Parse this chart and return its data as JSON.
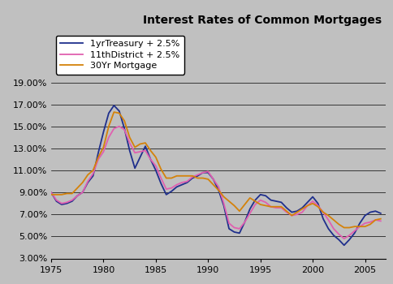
{
  "title": "Interest Rates of Common Mortgages",
  "background_color": "#c0c0c0",
  "plot_background": "#c0c0c0",
  "xlim": [
    1975,
    2007
  ],
  "ylim": [
    0.03,
    0.19
  ],
  "xticks": [
    1975,
    1980,
    1985,
    1990,
    1995,
    2000,
    2005
  ],
  "yticks": [
    0.03,
    0.05,
    0.07,
    0.09,
    0.11,
    0.13,
    0.15,
    0.17,
    0.19
  ],
  "series": [
    {
      "label": "1yrTreasury + 2.5%",
      "color": "#1f2f8c",
      "data_x": [
        1975.0,
        1975.5,
        1976.0,
        1976.5,
        1977.0,
        1977.5,
        1978.0,
        1978.5,
        1979.0,
        1979.5,
        1980.0,
        1980.5,
        1981.0,
        1981.5,
        1982.0,
        1982.5,
        1983.0,
        1983.5,
        1984.0,
        1984.5,
        1985.0,
        1985.5,
        1986.0,
        1986.5,
        1987.0,
        1987.5,
        1988.0,
        1988.5,
        1989.0,
        1989.5,
        1990.0,
        1990.5,
        1991.0,
        1991.5,
        1992.0,
        1992.5,
        1993.0,
        1993.5,
        1994.0,
        1994.5,
        1995.0,
        1995.5,
        1996.0,
        1996.5,
        1997.0,
        1997.5,
        1998.0,
        1998.5,
        1999.0,
        1999.5,
        2000.0,
        2000.5,
        2001.0,
        2001.5,
        2002.0,
        2002.5,
        2003.0,
        2003.5,
        2004.0,
        2004.5,
        2005.0,
        2005.5,
        2006.0,
        2006.5
      ],
      "data_y": [
        0.09,
        0.082,
        0.079,
        0.08,
        0.082,
        0.087,
        0.09,
        0.099,
        0.105,
        0.126,
        0.145,
        0.162,
        0.169,
        0.164,
        0.148,
        0.128,
        0.112,
        0.122,
        0.132,
        0.12,
        0.11,
        0.098,
        0.088,
        0.091,
        0.095,
        0.097,
        0.099,
        0.103,
        0.105,
        0.108,
        0.108,
        0.102,
        0.092,
        0.078,
        0.057,
        0.054,
        0.053,
        0.063,
        0.075,
        0.083,
        0.088,
        0.087,
        0.083,
        0.082,
        0.081,
        0.076,
        0.072,
        0.073,
        0.076,
        0.081,
        0.086,
        0.08,
        0.066,
        0.057,
        0.051,
        0.047,
        0.042,
        0.047,
        0.053,
        0.062,
        0.069,
        0.072,
        0.073,
        0.071
      ]
    },
    {
      "label": "11thDistrict + 2.5%",
      "color": "#e060b0",
      "data_x": [
        1975.0,
        1975.5,
        1976.0,
        1976.5,
        1977.0,
        1977.5,
        1978.0,
        1978.5,
        1979.0,
        1979.5,
        1980.0,
        1980.5,
        1981.0,
        1981.5,
        1982.0,
        1982.5,
        1983.0,
        1983.5,
        1984.0,
        1984.5,
        1985.0,
        1985.5,
        1986.0,
        1986.5,
        1987.0,
        1987.5,
        1988.0,
        1988.5,
        1989.0,
        1989.5,
        1990.0,
        1990.5,
        1991.0,
        1991.5,
        1992.0,
        1992.5,
        1993.0,
        1993.5,
        1994.0,
        1994.5,
        1995.0,
        1995.5,
        1996.0,
        1996.5,
        1997.0,
        1997.5,
        1998.0,
        1998.5,
        1999.0,
        1999.5,
        2000.0,
        2000.5,
        2001.0,
        2001.5,
        2002.0,
        2002.5,
        2003.0,
        2003.5,
        2004.0,
        2004.5,
        2005.0,
        2005.5,
        2006.0,
        2006.5
      ],
      "data_y": [
        0.09,
        0.083,
        0.08,
        0.081,
        0.083,
        0.087,
        0.09,
        0.1,
        0.107,
        0.12,
        0.127,
        0.14,
        0.148,
        0.15,
        0.147,
        0.135,
        0.126,
        0.127,
        0.128,
        0.12,
        0.114,
        0.103,
        0.093,
        0.094,
        0.097,
        0.099,
        0.1,
        0.104,
        0.106,
        0.108,
        0.109,
        0.102,
        0.095,
        0.08,
        0.062,
        0.058,
        0.057,
        0.063,
        0.071,
        0.079,
        0.083,
        0.081,
        0.077,
        0.076,
        0.076,
        0.072,
        0.069,
        0.07,
        0.072,
        0.078,
        0.082,
        0.078,
        0.072,
        0.065,
        0.057,
        0.052,
        0.048,
        0.051,
        0.055,
        0.059,
        0.062,
        0.063,
        0.065,
        0.064
      ]
    },
    {
      "label": "30Yr Mortgage",
      "color": "#d4820a",
      "data_x": [
        1975.0,
        1975.5,
        1976.0,
        1976.5,
        1977.0,
        1977.5,
        1978.0,
        1978.5,
        1979.0,
        1979.5,
        1980.0,
        1980.5,
        1981.0,
        1981.5,
        1982.0,
        1982.5,
        1983.0,
        1983.5,
        1984.0,
        1984.5,
        1985.0,
        1985.5,
        1986.0,
        1986.5,
        1987.0,
        1987.5,
        1988.0,
        1988.5,
        1989.0,
        1989.5,
        1990.0,
        1990.5,
        1991.0,
        1991.5,
        1992.0,
        1992.5,
        1993.0,
        1993.5,
        1994.0,
        1994.5,
        1995.0,
        1995.5,
        1996.0,
        1996.5,
        1997.0,
        1997.5,
        1998.0,
        1998.5,
        1999.0,
        1999.5,
        2000.0,
        2000.5,
        2001.0,
        2001.5,
        2002.0,
        2002.5,
        2003.0,
        2003.5,
        2004.0,
        2004.5,
        2005.0,
        2005.5,
        2006.0,
        2006.5
      ],
      "data_y": [
        0.088,
        0.088,
        0.088,
        0.089,
        0.089,
        0.094,
        0.099,
        0.106,
        0.11,
        0.122,
        0.131,
        0.15,
        0.163,
        0.162,
        0.155,
        0.14,
        0.131,
        0.134,
        0.135,
        0.128,
        0.122,
        0.111,
        0.103,
        0.103,
        0.105,
        0.105,
        0.105,
        0.105,
        0.103,
        0.103,
        0.102,
        0.097,
        0.092,
        0.086,
        0.082,
        0.078,
        0.073,
        0.079,
        0.085,
        0.082,
        0.079,
        0.078,
        0.077,
        0.077,
        0.077,
        0.073,
        0.069,
        0.072,
        0.075,
        0.078,
        0.08,
        0.077,
        0.072,
        0.069,
        0.065,
        0.061,
        0.058,
        0.058,
        0.059,
        0.059,
        0.059,
        0.061,
        0.065,
        0.066
      ]
    }
  ]
}
